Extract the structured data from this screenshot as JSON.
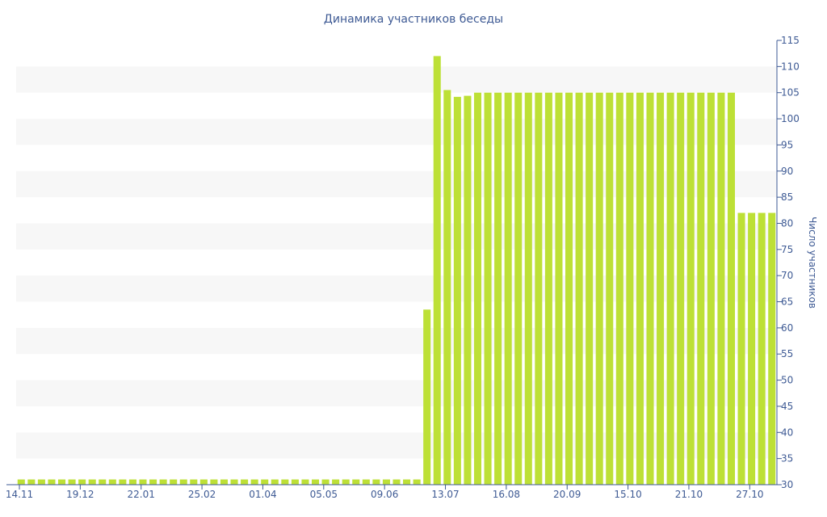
{
  "chart_data": {
    "type": "bar",
    "title": "Динамика участников беседы",
    "ylabel": "Число участников",
    "xlabel": "",
    "ylim": [
      30,
      115
    ],
    "y_ticks": [
      30,
      35,
      40,
      45,
      50,
      55,
      60,
      65,
      70,
      75,
      80,
      85,
      90,
      95,
      100,
      105,
      110,
      115
    ],
    "x_tick_labels": [
      "14.11",
      "19.12",
      "22.01",
      "25.02",
      "01.04",
      "05.05",
      "09.06",
      "13.07",
      "16.08",
      "20.09",
      "15.10",
      "21.10",
      "27.10"
    ],
    "y_axis_position": "right",
    "alternating_bands": true,
    "bar_color": "#bde036",
    "values": [
      31,
      31,
      31,
      31,
      31,
      31,
      31,
      31,
      31,
      31,
      31,
      31,
      31,
      31,
      31,
      31,
      31,
      31,
      31,
      31,
      31,
      31,
      31,
      31,
      31,
      31,
      31,
      31,
      31,
      31,
      31,
      31,
      31,
      31,
      31,
      31,
      31,
      31,
      31,
      31,
      63.5,
      112,
      105.5,
      104.2,
      104.4,
      105,
      105,
      105,
      105,
      105,
      105,
      105,
      105,
      105,
      105,
      105,
      105,
      105,
      105,
      105,
      105,
      105,
      105,
      105,
      105,
      105,
      105,
      105,
      105,
      105,
      105,
      82,
      82,
      82,
      82
    ]
  }
}
